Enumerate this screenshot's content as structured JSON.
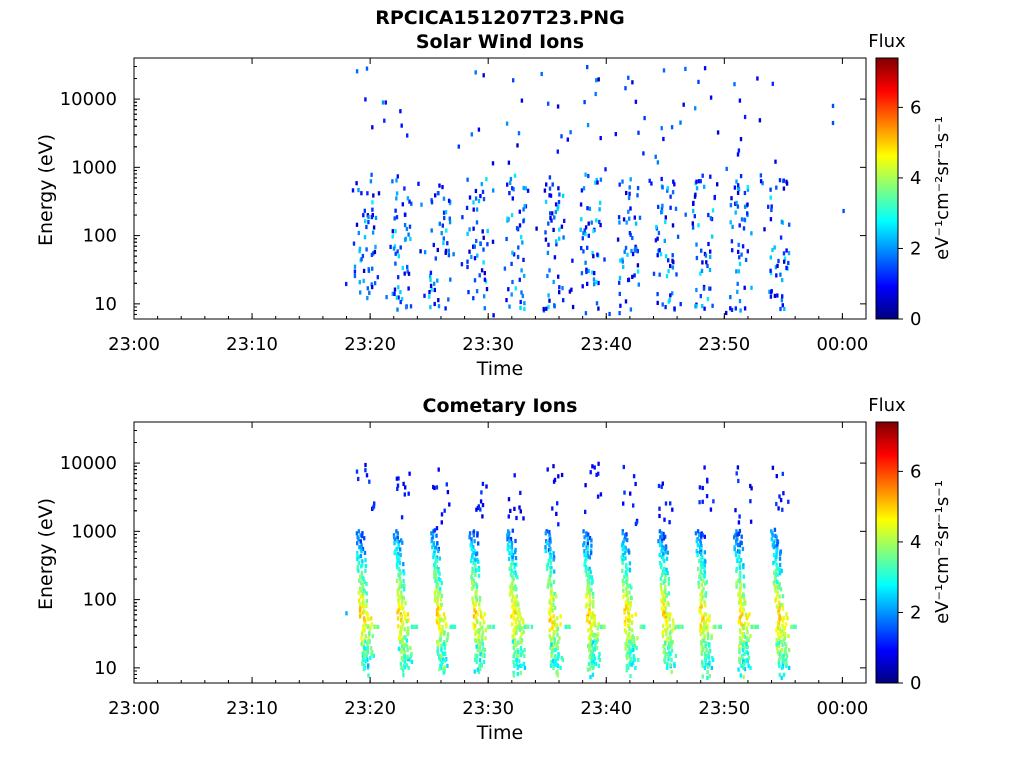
{
  "figure": {
    "title": "RPCICA151207T23.PNG"
  },
  "chart_data": [
    {
      "type": "heatmap",
      "title": "Solar Wind Ions",
      "xlabel": "Time",
      "ylabel": "Energy (eV)",
      "x_range": [
        "23:00",
        "00:02"
      ],
      "y_scale": "log",
      "ylim": [
        6,
        40000
      ],
      "x_ticks": [
        "23:00",
        "23:10",
        "23:20",
        "23:30",
        "23:40",
        "23:50",
        "00:00"
      ],
      "y_ticks": [
        "10",
        "100",
        "1000",
        "10000"
      ],
      "colorbar": {
        "label": "Flux",
        "unit_label": "eV⁻¹cm⁻²sr⁻¹s⁻¹",
        "range": [
          0,
          7.4
        ],
        "ticks": [
          "0",
          "2",
          "4",
          "6"
        ]
      },
      "data_time_span": [
        "23:18",
        "23:59"
      ],
      "bursts_minutes": [
        19.5,
        22.5,
        25.8,
        29.0,
        32.2,
        35.5,
        38.6,
        41.8,
        45.0,
        48.1,
        51.3,
        54.5
      ],
      "dominant_flux": [
        1,
        2.5
      ],
      "colormap": [
        "#00007f",
        "#0000ff",
        "#007fff",
        "#00ffff",
        "#7fff7f",
        "#ffff00",
        "#ff7f00",
        "#ff0000",
        "#7f0000"
      ]
    },
    {
      "type": "heatmap",
      "title": "Cometary Ions",
      "xlabel": "Time",
      "ylabel": "Energy (eV)",
      "x_range": [
        "23:00",
        "00:02"
      ],
      "y_scale": "log",
      "ylim": [
        6,
        40000
      ],
      "x_ticks": [
        "23:00",
        "23:10",
        "23:20",
        "23:30",
        "23:40",
        "23:50",
        "00:00"
      ],
      "y_ticks": [
        "10",
        "100",
        "1000",
        "10000"
      ],
      "colorbar": {
        "label": "Flux",
        "unit_label": "eV⁻¹cm⁻²sr⁻¹s⁻¹",
        "range": [
          0,
          7.4
        ],
        "ticks": [
          "0",
          "2",
          "4",
          "6"
        ]
      },
      "data_time_span": [
        "23:18",
        "23:56"
      ],
      "bursts_minutes": [
        19.5,
        22.7,
        25.9,
        29.1,
        32.3,
        35.5,
        38.7,
        41.9,
        45.1,
        48.3,
        51.5,
        54.7
      ],
      "peak_flux": 5.2,
      "colormap": [
        "#00007f",
        "#0000ff",
        "#007fff",
        "#00ffff",
        "#7fff7f",
        "#ffff00",
        "#ff7f00",
        "#ff0000",
        "#7f0000"
      ]
    }
  ]
}
